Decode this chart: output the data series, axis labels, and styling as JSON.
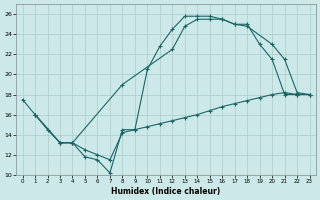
{
  "xlabel": "Humidex (Indice chaleur)",
  "xlim": [
    -0.5,
    23.5
  ],
  "ylim": [
    10,
    27
  ],
  "xticks": [
    0,
    1,
    2,
    3,
    4,
    5,
    6,
    7,
    8,
    9,
    10,
    11,
    12,
    13,
    14,
    15,
    16,
    17,
    18,
    19,
    20,
    21,
    22,
    23
  ],
  "yticks": [
    10,
    12,
    14,
    16,
    18,
    20,
    22,
    24,
    26
  ],
  "bg_color": "#cce8e8",
  "grid_color": "#aacccc",
  "line_color": "#1a6666",
  "curve1_x": [
    0,
    1,
    2,
    3,
    4,
    5,
    6,
    7,
    8,
    9,
    10,
    11,
    12,
    13,
    14,
    15,
    16,
    17,
    18,
    19,
    20,
    21,
    22,
    23
  ],
  "curve1_y": [
    17.5,
    16.0,
    14.5,
    13.2,
    13.2,
    11.8,
    11.5,
    10.2,
    14.5,
    14.5,
    20.5,
    22.8,
    24.5,
    25.8,
    25.8,
    25.8,
    25.5,
    25.0,
    25.0,
    23.0,
    21.5,
    18.0,
    18.0,
    18.0
  ],
  "curve2_x": [
    1,
    3,
    4,
    8,
    12,
    13,
    14,
    15,
    16,
    17,
    18,
    20,
    21,
    22,
    23
  ],
  "curve2_y": [
    16.0,
    13.2,
    13.2,
    19.0,
    22.5,
    24.8,
    25.5,
    25.5,
    25.5,
    25.0,
    24.8,
    23.0,
    21.5,
    18.2,
    18.0
  ],
  "curve3_x": [
    1,
    3,
    4,
    5,
    6,
    7,
    8,
    9,
    10,
    11,
    12,
    13,
    14,
    15,
    16,
    17,
    18,
    19,
    20,
    21,
    22,
    23
  ],
  "curve3_y": [
    16.0,
    13.2,
    13.2,
    12.5,
    12.0,
    11.5,
    14.2,
    14.5,
    14.8,
    15.1,
    15.4,
    15.7,
    16.0,
    16.4,
    16.8,
    17.1,
    17.4,
    17.7,
    18.0,
    18.2,
    18.0,
    18.0
  ]
}
